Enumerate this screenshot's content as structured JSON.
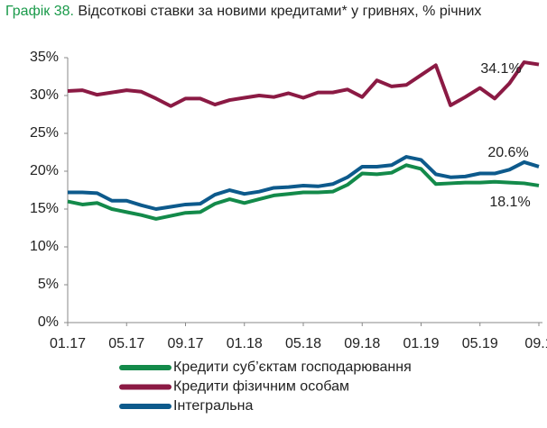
{
  "chart_data": {
    "type": "line",
    "title_label": "Графік 38.",
    "title": "Відсоткові ставки за новими кредитами* у гривнях, % річних",
    "categories": [
      "01.17",
      null,
      null,
      null,
      "05.17",
      null,
      null,
      null,
      "09.17",
      null,
      null,
      null,
      "01.18",
      null,
      null,
      null,
      "05.18",
      null,
      null,
      null,
      "09.18",
      null,
      null,
      null,
      "01.19",
      null,
      null,
      null,
      "05.19",
      null,
      null,
      null,
      "09.1"
    ],
    "series": [
      {
        "name": "Кредити суб’єктам господарювання",
        "color": "#138a4a",
        "values": [
          16.0,
          15.6,
          15.8,
          15.0,
          14.6,
          14.2,
          13.7,
          14.1,
          14.5,
          14.6,
          15.7,
          16.3,
          15.8,
          16.3,
          16.8,
          17.0,
          17.2,
          17.2,
          17.3,
          18.2,
          19.7,
          19.6,
          19.8,
          20.8,
          20.3,
          18.3,
          18.4,
          18.5,
          18.5,
          18.6,
          18.5,
          18.4,
          18.1
        ]
      },
      {
        "name": "Кредити фізичним особам",
        "color": "#8b1a44",
        "values": [
          30.6,
          30.7,
          30.1,
          30.4,
          30.7,
          30.5,
          29.6,
          28.6,
          29.6,
          29.6,
          28.8,
          29.4,
          29.7,
          30.0,
          29.8,
          30.3,
          29.7,
          30.4,
          30.4,
          30.8,
          29.8,
          32.0,
          31.2,
          31.4,
          32.7,
          34.0,
          28.7,
          29.8,
          31.0,
          29.6,
          31.6,
          34.4,
          34.1
        ]
      },
      {
        "name": "Інтегральна",
        "color": "#0d5a8c",
        "values": [
          17.2,
          17.2,
          17.1,
          16.1,
          16.1,
          15.5,
          15.0,
          15.3,
          15.6,
          15.7,
          16.9,
          17.5,
          17.0,
          17.3,
          17.8,
          17.9,
          18.1,
          18.0,
          18.3,
          19.2,
          20.6,
          20.6,
          20.8,
          21.9,
          21.5,
          19.6,
          19.2,
          19.3,
          19.7,
          19.7,
          20.2,
          21.2,
          20.6
        ]
      }
    ],
    "annotations": [
      "34.1%",
      "20.6%",
      "18.1%"
    ],
    "ylim": [
      0,
      35
    ],
    "yticks": [
      {
        "value": 0,
        "label": "0%"
      },
      {
        "value": 5,
        "label": "5%"
      },
      {
        "value": 10,
        "label": "10%"
      },
      {
        "value": 15,
        "label": "15%"
      },
      {
        "value": 20,
        "label": "20%"
      },
      {
        "value": 25,
        "label": "25%"
      },
      {
        "value": 30,
        "label": "30%"
      },
      {
        "value": 35,
        "label": "35%"
      }
    ],
    "grid": false
  }
}
